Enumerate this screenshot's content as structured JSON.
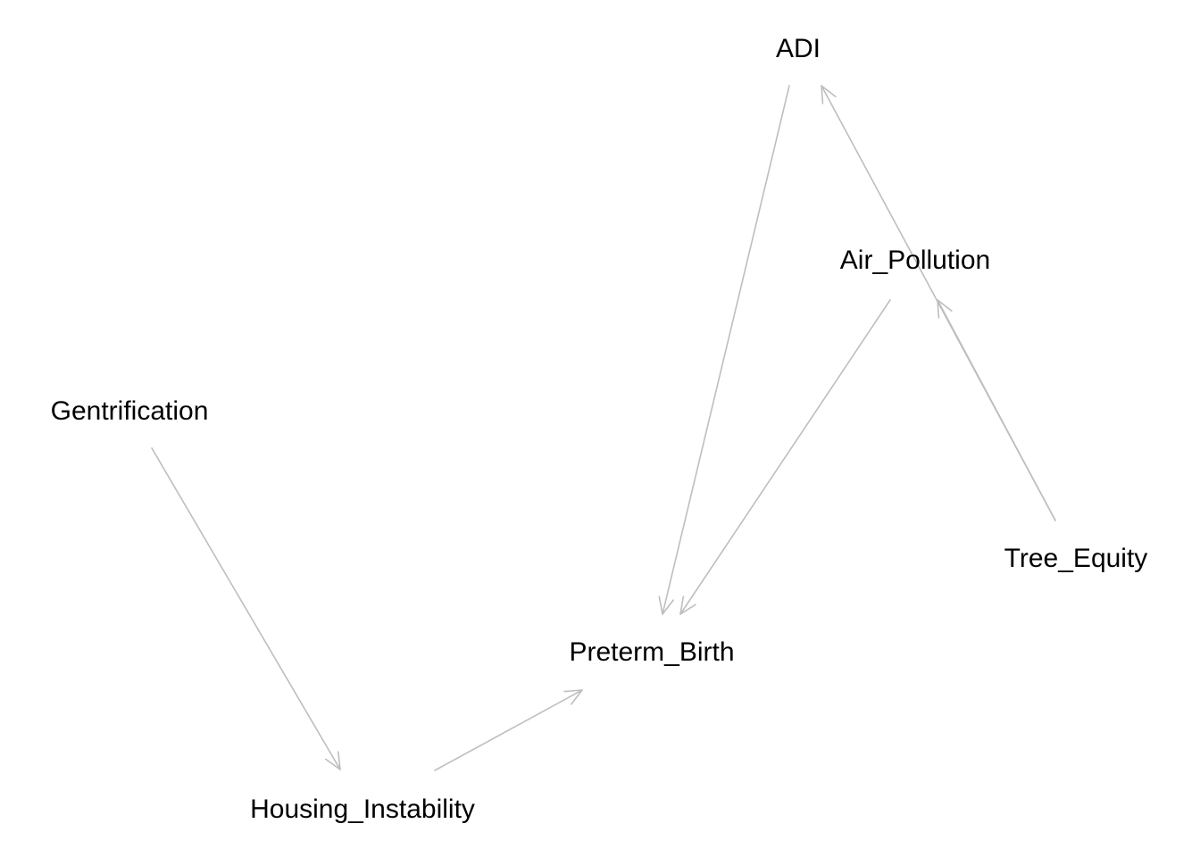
{
  "diagram": {
    "type": "directed-acyclic-graph",
    "nodes": [
      {
        "id": "adi",
        "label": "ADI"
      },
      {
        "id": "air_pollution",
        "label": "Air_Pollution"
      },
      {
        "id": "gentrification",
        "label": "Gentrification"
      },
      {
        "id": "tree_equity",
        "label": "Tree_Equity"
      },
      {
        "id": "preterm_birth",
        "label": "Preterm_Birth"
      },
      {
        "id": "housing_instability",
        "label": "Housing_Instability"
      }
    ],
    "edges": [
      {
        "from": "adi",
        "to": "preterm_birth"
      },
      {
        "from": "air_pollution",
        "to": "preterm_birth"
      },
      {
        "from": "tree_equity",
        "to": "adi"
      },
      {
        "from": "tree_equity",
        "to": "air_pollution"
      },
      {
        "from": "gentrification",
        "to": "housing_instability"
      },
      {
        "from": "housing_instability",
        "to": "preterm_birth"
      }
    ],
    "colors": {
      "edge": "#bebebe",
      "label": "#000000",
      "background": "#ffffff"
    }
  }
}
